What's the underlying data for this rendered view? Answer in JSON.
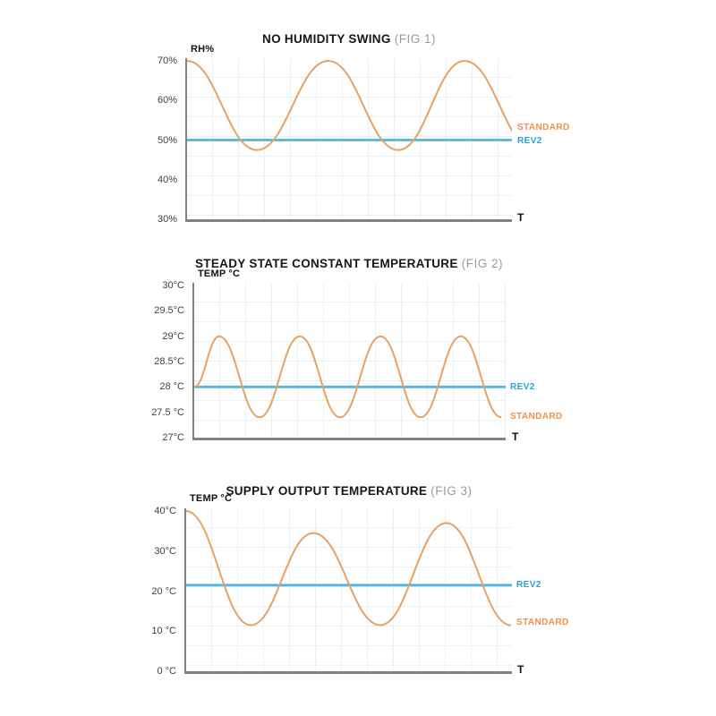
{
  "colors": {
    "standard": "#E7A163",
    "standard_label": "#F0914B",
    "rev2": "#56B5DD",
    "rev2_label": "#2B9FD6",
    "axis": "#818181",
    "grid": "#E6F2FA",
    "title": "#161616",
    "fig_label": "#9B9B9B",
    "tick": "#3F3F3F"
  },
  "charts": [
    {
      "title": "NO HUMIDITY SWING",
      "fig": "(FIG 1)",
      "y_axis_label": "RH%",
      "x_axis_label": "T",
      "y_ticks": [
        "70%",
        "60%",
        "50%",
        "40%",
        "30%"
      ],
      "labels": {
        "standard": "STANDARD",
        "rev2": "REV2"
      }
    },
    {
      "title": "STEADY STATE CONSTANT TEMPERATURE",
      "fig": "(FIG 2)",
      "y_axis_label": "TEMP °C",
      "x_axis_label": "T",
      "y_ticks": [
        "30°C",
        "29.5°C",
        "29°C",
        "28.5°C",
        "28 °C",
        "27.5 °C",
        "27°C"
      ],
      "labels": {
        "standard": "STANDARD",
        "rev2": "REV2"
      }
    },
    {
      "title": "SUPPLY OUTPUT TEMPERATURE",
      "fig": "(FIG 3)",
      "y_axis_label": "TEMP °C",
      "x_axis_label": "T",
      "y_ticks": [
        "40°C",
        "30°C",
        "20 °C",
        "10 °C",
        "0 °C"
      ],
      "labels": {
        "standard": "STANDARD",
        "rev2": "REV2"
      }
    }
  ],
  "chart_data": [
    {
      "type": "line",
      "title": "NO HUMIDITY SWING (FIG 1)",
      "xlabel": "T",
      "ylabel": "RH%",
      "ylim": [
        30,
        70
      ],
      "y_tick_values": [
        70,
        60,
        50,
        40,
        30
      ],
      "grid": true,
      "legend_position": "right of line ends",
      "series": [
        {
          "name": "STANDARD",
          "style": "sinusoid",
          "peak_value": 70,
          "trough_value": 47.5,
          "extremes_t_value": [
            [
              0,
              70
            ],
            [
              0.215,
              47.5
            ],
            [
              0.435,
              70
            ],
            [
              0.65,
              47.5
            ],
            [
              0.854,
              70
            ],
            [
              1.07,
              47.5
            ]
          ]
        },
        {
          "name": "REV2",
          "style": "constant",
          "value": 50
        }
      ]
    },
    {
      "type": "line",
      "title": "STEADY STATE CONSTANT TEMPERATURE (FIG 2)",
      "xlabel": "T",
      "ylabel": "TEMP °C",
      "ylim": [
        27,
        30
      ],
      "y_tick_values": [
        30,
        29.5,
        29,
        28.5,
        28,
        27.5,
        27
      ],
      "grid": true,
      "legend_position": "right of line ends",
      "series": [
        {
          "name": "STANDARD",
          "style": "sinusoid",
          "peak_value": 29,
          "trough_value": 27.4,
          "extremes_t_value": [
            [
              0,
              28
            ],
            [
              0.08,
              29
            ],
            [
              0.21,
              27.4
            ],
            [
              0.339,
              29
            ],
            [
              0.468,
              27.4
            ],
            [
              0.598,
              29
            ],
            [
              0.727,
              27.4
            ],
            [
              0.856,
              29
            ],
            [
              0.986,
              27.4
            ]
          ]
        },
        {
          "name": "REV2",
          "style": "constant",
          "value": 28
        }
      ]
    },
    {
      "type": "line",
      "title": "SUPPLY OUTPUT TEMPERATURE (FIG 3)",
      "xlabel": "T",
      "ylabel": "TEMP °C",
      "ylim": [
        0,
        40
      ],
      "y_tick_values": [
        40,
        30,
        20,
        10,
        0
      ],
      "grid": true,
      "legend_position": "right of line ends",
      "series": [
        {
          "name": "STANDARD",
          "style": "sinusoid",
          "peak_value": 40,
          "trough_value": 11.5,
          "extremes_t_value": [
            [
              0,
              40
            ],
            [
              0.198,
              11.5
            ],
            [
              0.39,
              34.5
            ],
            [
              0.596,
              11.5
            ],
            [
              0.799,
              37
            ],
            [
              0.997,
              11.5
            ]
          ]
        },
        {
          "name": "REV2",
          "style": "constant",
          "value": 21.5
        }
      ]
    }
  ]
}
